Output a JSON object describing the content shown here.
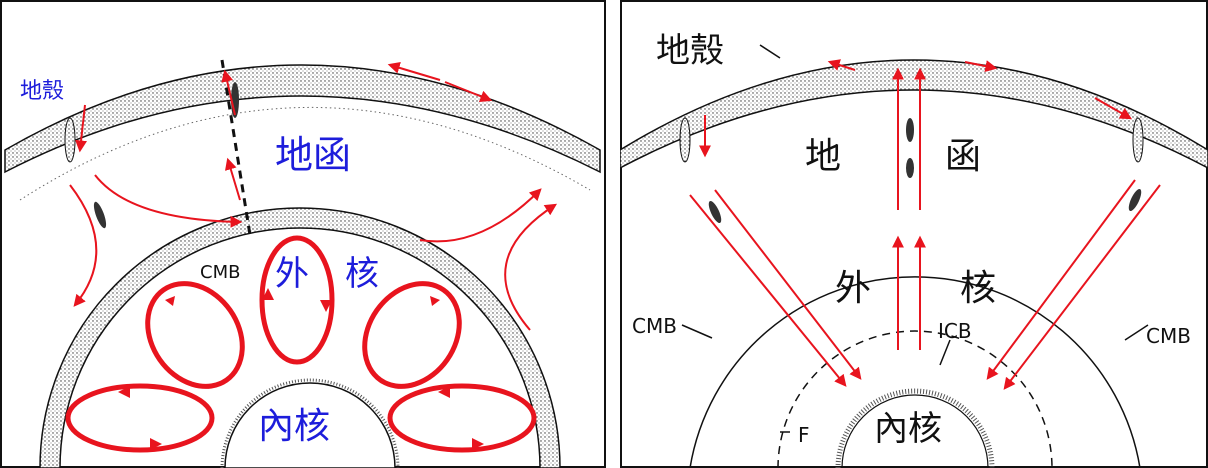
{
  "left_panel": {
    "labels": {
      "crust": "地殼",
      "mantle": "地函",
      "cmb": "CMB",
      "outer_core_a": "外",
      "outer_core_b": "核",
      "inner_core": "內核"
    }
  },
  "right_panel": {
    "labels": {
      "crust": "地殼",
      "mantle_a": "地",
      "mantle_b": "函",
      "outer_core_a": "外",
      "outer_core_b": "核",
      "cmb_left": "CMB",
      "cmb_right": "CMB",
      "icb": "ICB",
      "inner_core": "內核",
      "f": "F"
    }
  },
  "colors": {
    "arrow": "#e8141e",
    "label_blue": "#1d1ddb",
    "label_black": "#111111",
    "stipple": "#333333"
  }
}
